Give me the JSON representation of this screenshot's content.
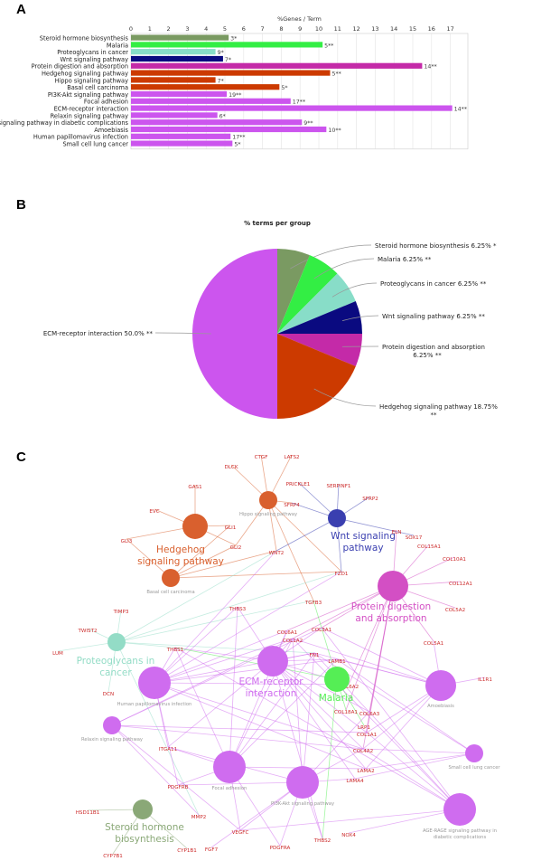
{
  "panels": {
    "a": "A",
    "b": "B",
    "c": "C"
  },
  "chart_data": [
    {
      "type": "bar",
      "orientation": "horizontal",
      "title": "%Genes / Term",
      "xlim": [
        0,
        17.5
      ],
      "xticks": [
        0,
        1,
        2,
        3,
        4,
        5,
        6,
        7,
        8,
        9,
        10,
        11,
        12,
        13,
        14,
        15,
        16,
        17
      ],
      "grid": true,
      "categories": [
        "Steroid hormone biosynthesis",
        "Malaria",
        "Proteoglycans in cancer",
        "Wnt signaling pathway",
        "Protein digestion and absorption",
        "Hedgehog signaling pathway",
        "Hippo signaling pathway",
        "Basal cell carcinoma",
        "PI3K-Akt signaling pathway",
        "Focal adhesion",
        "ECM-receptor interaction",
        "Relaxin signaling pathway",
        "AGE-RAGE signaling pathway in diabetic complications",
        "Amoebiasis",
        "Human papillomavirus infection",
        "Small cell lung cancer"
      ],
      "values": [
        5.2,
        10.2,
        4.5,
        4.9,
        15.5,
        10.6,
        4.5,
        7.9,
        5.1,
        8.5,
        17.1,
        4.6,
        9.1,
        10.4,
        5.3,
        5.4
      ],
      "data_labels": [
        "3*",
        "5**",
        "9*",
        "7*",
        "14**",
        "5**",
        "7*",
        "5*",
        "19**",
        "17**",
        "14**",
        "6*",
        "9**",
        "10**",
        "17**",
        "5*"
      ],
      "colors": [
        "#7a9a62",
        "#33ee44",
        "#88ddc8",
        "#0a0a80",
        "#c42aa8",
        "#cc3a00",
        "#cc3a00",
        "#cc3a00",
        "#cc55ee",
        "#cc55ee",
        "#cc55ee",
        "#cc55ee",
        "#cc55ee",
        "#cc55ee",
        "#cc55ee",
        "#cc55ee"
      ]
    },
    {
      "type": "pie",
      "title": "% terms per group",
      "slices": [
        {
          "name": "Steroid hormone biosynthesis",
          "value": 6.25,
          "label": "Steroid hormone biosynthesis 6.25% *",
          "color": "#7a9a62"
        },
        {
          "name": "Malaria",
          "value": 6.25,
          "label": "Malaria 6.25% **",
          "color": "#33ee44"
        },
        {
          "name": "Proteoglycans in cancer",
          "value": 6.25,
          "label": "Proteoglycans in cancer 6.25% **",
          "color": "#88ddc8"
        },
        {
          "name": "Wnt signaling pathway",
          "value": 6.25,
          "label": "Wnt signaling pathway 6.25% **",
          "color": "#0a0a80"
        },
        {
          "name": "Protein digestion and absorption",
          "value": 6.25,
          "label": "Protein digestion and absorption|6.25% **",
          "color": "#c42aa8"
        },
        {
          "name": "Hedgehog signaling pathway",
          "value": 18.75,
          "label": "Hedgehog signaling pathway 18.75%|**",
          "color": "#cc3a00"
        },
        {
          "name": "ECM-receptor interaction",
          "value": 50.0,
          "label": "ECM-receptor interaction 50.0% **",
          "color": "#cc55ee"
        }
      ]
    }
  ],
  "network": {
    "term_colors": {
      "hedgehog": "#d9602e",
      "wnt": "#3a3fb0",
      "protein": "#d34fc4",
      "proteo": "#93dcc6",
      "ecm": "#cf6cef",
      "malaria": "#55ee55",
      "steroid": "#8aa877"
    },
    "gene_color": "#cc2a2a",
    "terms": [
      {
        "id": "hedgehog",
        "label": "Hedgehog|signaling pathway",
        "group": "hedgehog",
        "big": true
      },
      {
        "id": "hippo",
        "label": "Hippo signaling pathway",
        "group": "hedgehog",
        "big": false
      },
      {
        "id": "basal",
        "label": "Basal cell carcinoma",
        "group": "hedgehog",
        "big": false
      },
      {
        "id": "wnt",
        "label": "Wnt signaling|pathway",
        "group": "wnt",
        "big": true
      },
      {
        "id": "protein",
        "label": "Protein digestion|and absorption",
        "group": "protein",
        "big": true
      },
      {
        "id": "proteo",
        "label": "Proteoglycans in|cancer",
        "group": "proteo",
        "big": true
      },
      {
        "id": "hpv",
        "label": "Human papillomavirus infection",
        "group": "ecm",
        "big": false
      },
      {
        "id": "ecm",
        "label": "ECM-receptor|interaction",
        "group": "ecm",
        "big": true
      },
      {
        "id": "malaria",
        "label": "Malaria",
        "group": "malaria",
        "big": true
      },
      {
        "id": "amoeb",
        "label": "Amoebiasis",
        "group": "ecm",
        "big": false
      },
      {
        "id": "relaxin",
        "label": "Relaxin signaling pathway",
        "group": "ecm",
        "big": false
      },
      {
        "id": "focal",
        "label": "Focal adhesion",
        "group": "ecm",
        "big": false
      },
      {
        "id": "pi3k",
        "label": "PI3K-Akt signaling pathway",
        "group": "ecm",
        "big": false
      },
      {
        "id": "sclc",
        "label": "Small cell lung cancer",
        "group": "ecm",
        "big": false
      },
      {
        "id": "age",
        "label": "AGE-RAGE signaling pathway in|diabetic complications",
        "group": "ecm",
        "big": false
      },
      {
        "id": "steroid",
        "label": "Steroid hormone|biosynthesis",
        "group": "steroid",
        "big": true
      }
    ],
    "genes": [
      "GAS1",
      "EVC",
      "GLI3",
      "GLI1",
      "GLI2",
      "DLCK",
      "CTGF",
      "LATS2",
      "PRICKLE1",
      "SFRP4",
      "SERPINF1",
      "SFRP2",
      "SOX17",
      "WNT2",
      "FZD1",
      "ELN",
      "COL15A1",
      "COL10A1",
      "COL12A1",
      "COL5A2",
      "COL5A1",
      "TGFB3",
      "TIMP3",
      "TWIST2",
      "LUM",
      "DCN",
      "THBS3",
      "THBS1",
      "COL6A1",
      "COL3A1",
      "COL1A2",
      "FN1",
      "LAMB1",
      "COL6A2",
      "COL18A1",
      "COL6A3",
      "LRP1",
      "COL1A1",
      "COL4A2",
      "LAMA2",
      "LAMA4",
      "IL1R1",
      "ITGA11",
      "PDGFRB",
      "MMP2",
      "HSD11B1",
      "CYP1B1",
      "CYP7B1",
      "FGF7",
      "VEGFC",
      "PDGFRA",
      "THBS2",
      "NOX4"
    ],
    "edges": {
      "hedgehog": [
        "GAS1",
        "EVC",
        "GLI3",
        "GLI1",
        "GLI2"
      ],
      "hippo": [
        "DLCK",
        "CTGF",
        "LATS2",
        "SFRP4",
        "WNT2",
        "FZD1",
        "TGFB3",
        "GLI2"
      ],
      "basal": [
        "GLI3",
        "GLI1",
        "GLI2",
        "WNT2",
        "FZD1"
      ],
      "wnt": [
        "PRICKLE1",
        "SERPINF1",
        "SFRP2",
        "SOX17",
        "SFRP4",
        "WNT2",
        "FZD1"
      ],
      "protein": [
        "ELN",
        "COL15A1",
        "COL10A1",
        "COL12A1",
        "COL5A2",
        "COL5A1",
        "COL6A1",
        "COL3A1",
        "COL1A2",
        "COL6A2",
        "COL6A3",
        "COL1A1",
        "COL4A2",
        "COL18A1"
      ],
      "proteo": [
        "TIMP3",
        "TWIST2",
        "LUM",
        "DCN",
        "THBS1",
        "FN1",
        "WNT2",
        "FZD1",
        "MMP2",
        "TGFB3"
      ],
      "hpv": [
        "THBS1",
        "COL6A1",
        "COL1A2",
        "FN1",
        "LAMB1",
        "COL6A2",
        "COL4A2",
        "LAMA2",
        "ITGA11",
        "PDGFRB",
        "WNT2",
        "FZD1",
        "THBS3"
      ],
      "ecm": [
        "THBS3",
        "COL6A1",
        "COL3A1",
        "COL1A2",
        "FN1",
        "LAMB1",
        "COL6A2",
        "COL6A3",
        "COL1A1",
        "COL4A2",
        "LAMA2",
        "LAMA4",
        "THBS1",
        "ITGA11",
        "THBS2"
      ],
      "malaria": [
        "THBS1",
        "THBS2",
        "LRP1",
        "COL18A1",
        "TGFB3"
      ],
      "amoeb": [
        "COL3A1",
        "COL1A2",
        "COL1A1",
        "FN1",
        "LAMB1",
        "COL4A2",
        "LAMA2",
        "IL1R1",
        "COL5A1"
      ],
      "relaxin": [
        "COL3A1",
        "COL1A2",
        "COL1A1",
        "COL4A2",
        "MMP2",
        "VEGFC"
      ],
      "focal": [
        "ITGA11",
        "PDGFRB",
        "VEGFC",
        "PDGFRA",
        "COL6A1",
        "COL1A2",
        "FN1",
        "LAMB1",
        "LAMA2",
        "THBS1",
        "THBS3"
      ],
      "pi3k": [
        "ITGA11",
        "PDGFRB",
        "VEGFC",
        "PDGFRA",
        "FGF7",
        "THBS2",
        "COL6A3",
        "COL1A2",
        "FN1",
        "LAMA4",
        "COL4A2"
      ],
      "sclc": [
        "COL4A2",
        "LAMA2",
        "LAMA4",
        "FN1",
        "LAMB1"
      ],
      "age": [
        "COL3A1",
        "COL1A2",
        "COL1A1",
        "COL4A2",
        "FN1",
        "VEGFC",
        "NOX4",
        "THBS1"
      ],
      "steroid": [
        "HSD11B1",
        "CYP1B1",
        "CYP7B1"
      ]
    }
  }
}
